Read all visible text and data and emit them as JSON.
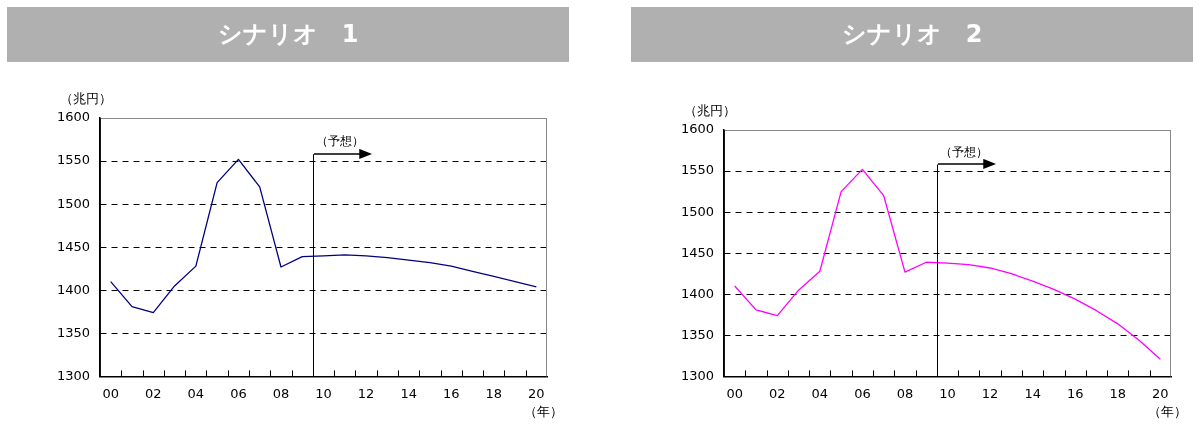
{
  "chart_data": [
    {
      "type": "line",
      "title": "シナリオ　1",
      "ylabel": "（兆円）",
      "xlabel": "（年）",
      "x": [
        0,
        1,
        2,
        3,
        4,
        5,
        6,
        7,
        8,
        9,
        10,
        11,
        12,
        13,
        14,
        15,
        16,
        17,
        18,
        19,
        20
      ],
      "series": [
        {
          "color": "#000080",
          "values": [
            1410,
            1381,
            1374,
            1405,
            1428,
            1525,
            1552,
            1520,
            1427,
            1439,
            1440,
            1441,
            1440,
            1438,
            1435,
            1432,
            1428,
            1422,
            1416,
            1410,
            1404
          ]
        }
      ],
      "xlim": [
        -0.5,
        20.5
      ],
      "xticks": [
        {
          "value": 0,
          "label": "00"
        },
        {
          "value": 2,
          "label": "02"
        },
        {
          "value": 4,
          "label": "04"
        },
        {
          "value": 6,
          "label": "06"
        },
        {
          "value": 8,
          "label": "08"
        },
        10,
        12,
        14,
        16,
        18,
        20,
        {
          "value": 0.5,
          "label": null
        },
        {
          "value": 1.5,
          "label": null
        },
        {
          "value": 2.5,
          "label": null
        },
        {
          "value": 3.5,
          "label": null
        },
        {
          "value": 4.5,
          "label": null
        },
        {
          "value": 5.5,
          "label": null
        },
        {
          "value": 6.5,
          "label": null
        },
        {
          "value": 7.5,
          "label": null
        },
        {
          "value": 8.5,
          "label": null
        },
        {
          "value": 9.5,
          "label": null
        },
        {
          "value": 10.5,
          "label": null
        },
        {
          "value": 11.5,
          "label": null
        },
        {
          "value": 12.5,
          "label": null
        },
        {
          "value": 13.5,
          "label": null
        },
        {
          "value": 14.5,
          "label": null
        },
        {
          "value": 15.5,
          "label": null
        },
        {
          "value": 16.5,
          "label": null
        },
        {
          "value": 17.5,
          "label": null
        },
        {
          "value": 18.5,
          "label": null
        },
        {
          "value": 19.5,
          "label": null
        }
      ],
      "ylim": [
        1300,
        1600
      ],
      "yticks": [
        1300,
        1350,
        1400,
        1450,
        1500,
        1550,
        1600
      ],
      "grid": "y",
      "legend": false,
      "marker": "none",
      "line_style": "solid",
      "ref_lines": [
        {
          "axis": "x",
          "value": 9.5,
          "label": "（予想）",
          "color": "#000000"
        }
      ]
    },
    {
      "type": "line",
      "title": "シナリオ　2",
      "ylabel": "（兆円）",
      "xlabel": "（年）",
      "x": [
        0,
        1,
        2,
        3,
        4,
        5,
        6,
        7,
        8,
        9,
        10,
        11,
        12,
        13,
        14,
        15,
        16,
        17,
        18,
        19,
        20
      ],
      "series": [
        {
          "color": "#ff00ff",
          "values": [
            1410,
            1381,
            1374,
            1405,
            1428,
            1525,
            1552,
            1520,
            1427,
            1439,
            1438,
            1436,
            1432,
            1425,
            1416,
            1406,
            1394,
            1380,
            1364,
            1344,
            1321
          ]
        }
      ],
      "xlim": [
        -0.5,
        20.5
      ],
      "xticks": [
        {
          "value": 0,
          "label": "00"
        },
        {
          "value": 2,
          "label": "02"
        },
        {
          "value": 4,
          "label": "04"
        },
        {
          "value": 6,
          "label": "06"
        },
        {
          "value": 8,
          "label": "08"
        },
        10,
        12,
        14,
        16,
        18,
        20,
        {
          "value": 0.5,
          "label": null
        },
        {
          "value": 1.5,
          "label": null
        },
        {
          "value": 2.5,
          "label": null
        },
        {
          "value": 3.5,
          "label": null
        },
        {
          "value": 4.5,
          "label": null
        },
        {
          "value": 5.5,
          "label": null
        },
        {
          "value": 6.5,
          "label": null
        },
        {
          "value": 7.5,
          "label": null
        },
        {
          "value": 8.5,
          "label": null
        },
        {
          "value": 9.5,
          "label": null
        },
        {
          "value": 10.5,
          "label": null
        },
        {
          "value": 11.5,
          "label": null
        },
        {
          "value": 12.5,
          "label": null
        },
        {
          "value": 13.5,
          "label": null
        },
        {
          "value": 14.5,
          "label": null
        },
        {
          "value": 15.5,
          "label": null
        },
        {
          "value": 16.5,
          "label": null
        },
        {
          "value": 17.5,
          "label": null
        },
        {
          "value": 18.5,
          "label": null
        },
        {
          "value": 19.5,
          "label": null
        }
      ],
      "ylim": [
        1300,
        1600
      ],
      "yticks": [
        1300,
        1350,
        1400,
        1450,
        1500,
        1550,
        1600
      ],
      "grid": "y",
      "legend": false,
      "marker": "none",
      "line_style": "solid",
      "ref_lines": [
        {
          "axis": "x",
          "value": 9.5,
          "label": "（予想）",
          "color": "#000000"
        }
      ]
    }
  ]
}
